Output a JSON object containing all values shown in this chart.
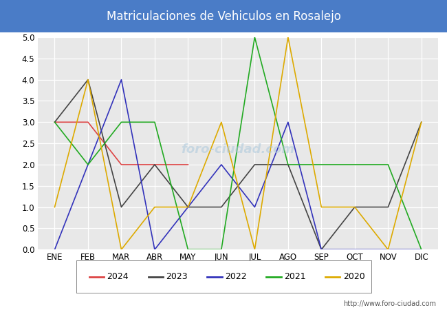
{
  "title": "Matriculaciones de Vehiculos en Rosalejo",
  "title_bg_color": "#4a7cc7",
  "title_text_color": "white",
  "months": [
    "ENE",
    "FEB",
    "MAR",
    "ABR",
    "MAY",
    "JUN",
    "JUL",
    "AGO",
    "SEP",
    "OCT",
    "NOV",
    "DIC"
  ],
  "series": [
    {
      "year": "2024",
      "color": "#dd4444",
      "data": [
        3,
        3,
        2,
        2,
        2,
        null,
        null,
        null,
        null,
        null,
        null,
        null
      ]
    },
    {
      "year": "2023",
      "color": "#444444",
      "data": [
        3,
        4,
        1,
        2,
        1,
        1,
        2,
        2,
        0,
        1,
        1,
        3
      ]
    },
    {
      "year": "2022",
      "color": "#3333bb",
      "data": [
        0,
        2,
        4,
        0,
        1,
        2,
        1,
        3,
        0,
        0,
        0,
        0
      ]
    },
    {
      "year": "2021",
      "color": "#22aa22",
      "data": [
        3,
        2,
        3,
        3,
        0,
        0,
        5,
        2,
        2,
        2,
        2,
        0
      ]
    },
    {
      "year": "2020",
      "color": "#ddaa00",
      "data": [
        1,
        4,
        0,
        1,
        1,
        3,
        0,
        5,
        1,
        1,
        0,
        3
      ]
    }
  ],
  "ylim": [
    0,
    5.0
  ],
  "yticks": [
    0.0,
    0.5,
    1.0,
    1.5,
    2.0,
    2.5,
    3.0,
    3.5,
    4.0,
    4.5,
    5.0
  ],
  "url_text": "http://www.foro-ciudad.com",
  "watermark_text": "foro-ciudad.com",
  "plot_bg_color": "#e8e8e8",
  "fig_bg_color": "#ffffff"
}
